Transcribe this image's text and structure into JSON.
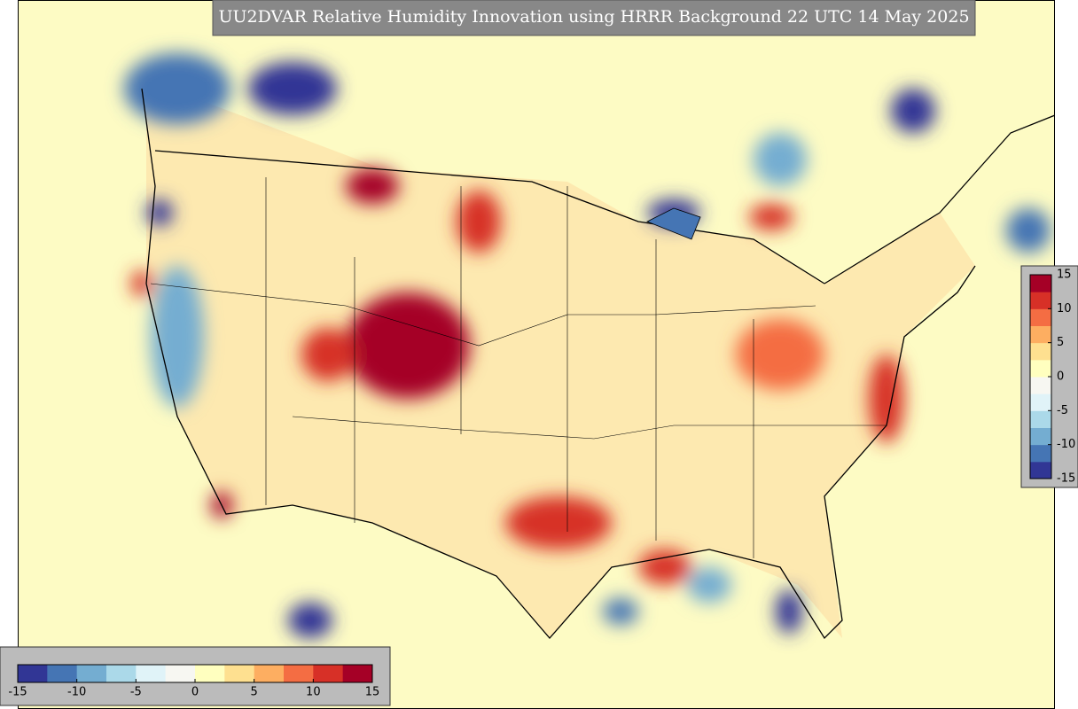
{
  "title": "UU2DVAR Relative Humidity Innovation using HRRR Background 22 UTC 14 May 2025",
  "colormap": [
    "#313695",
    "#4575b4",
    "#74add1",
    "#abd9e9",
    "#e0f3f8",
    "#f7f7f2",
    "#ffffbf",
    "#fee090",
    "#fdae61",
    "#f46d43",
    "#d73027",
    "#a50026"
  ],
  "colorbars": [
    {
      "orientation": "vertical",
      "range": [
        -15,
        15
      ],
      "ticks": [
        15,
        10,
        5,
        0,
        -5,
        -10,
        -15
      ]
    },
    {
      "orientation": "horizontal",
      "range": [
        -15,
        15
      ],
      "ticks": [
        -15,
        -10,
        -5,
        0,
        5,
        10,
        15
      ]
    }
  ]
}
